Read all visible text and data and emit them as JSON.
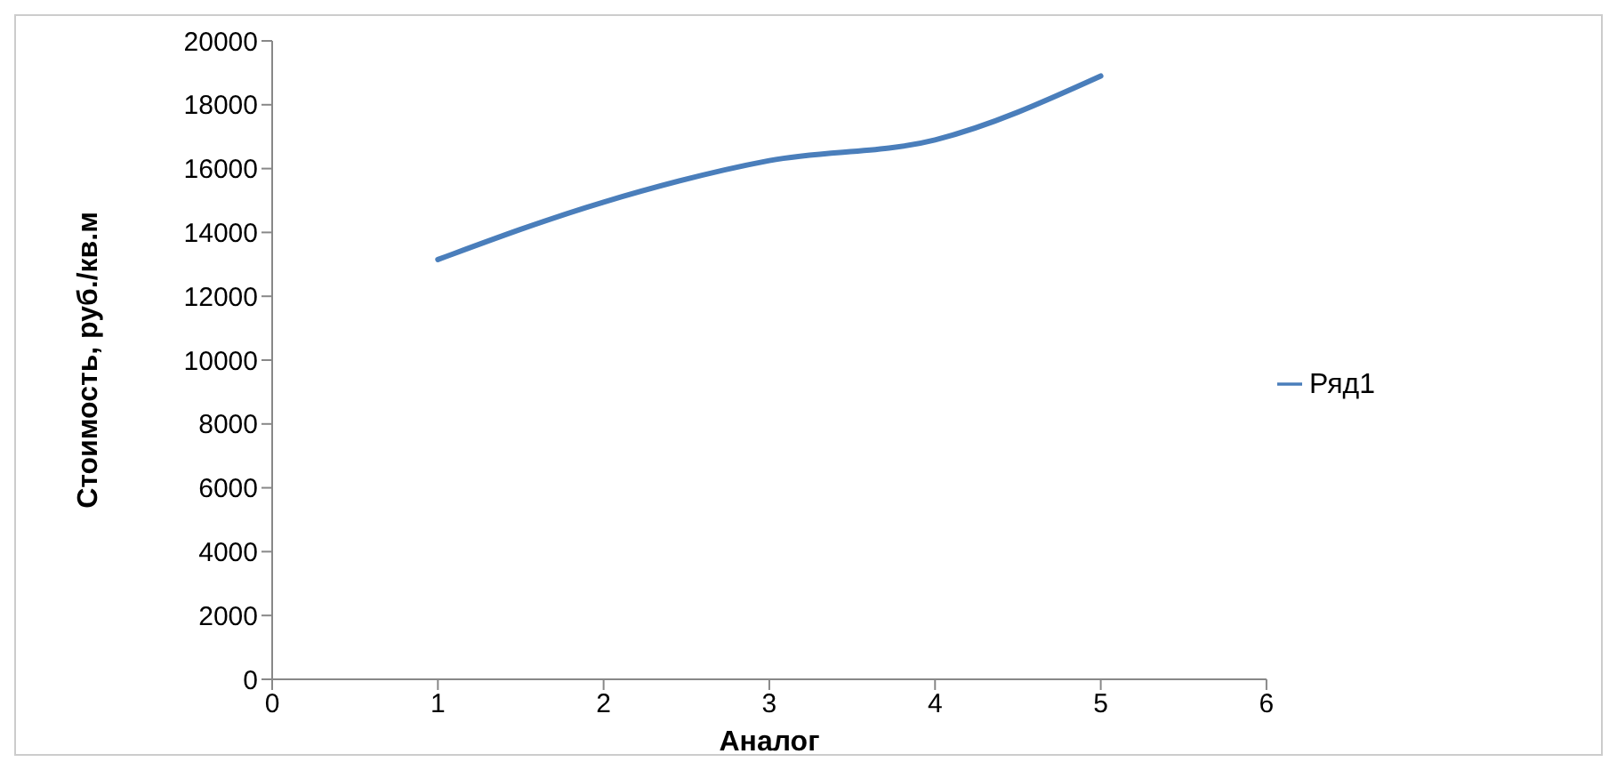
{
  "chart_data": {
    "type": "line",
    "xlabel": "Аналог",
    "ylabel": "Стоимость, руб./кв.м",
    "x": [
      1,
      2,
      3,
      4,
      5
    ],
    "series": [
      {
        "name": "Ряд1",
        "color": "#4a7ebb",
        "values": [
          13150,
          14950,
          16250,
          16900,
          18900
        ]
      }
    ],
    "xlim": [
      0,
      6
    ],
    "xticks": [
      0,
      1,
      2,
      3,
      4,
      5,
      6
    ],
    "ylim": [
      0,
      20000
    ],
    "yticks": [
      0,
      2000,
      4000,
      6000,
      8000,
      10000,
      12000,
      14000,
      16000,
      18000,
      20000
    ],
    "grid": false,
    "legend": "right",
    "marker": "none",
    "line_style": "solid"
  }
}
